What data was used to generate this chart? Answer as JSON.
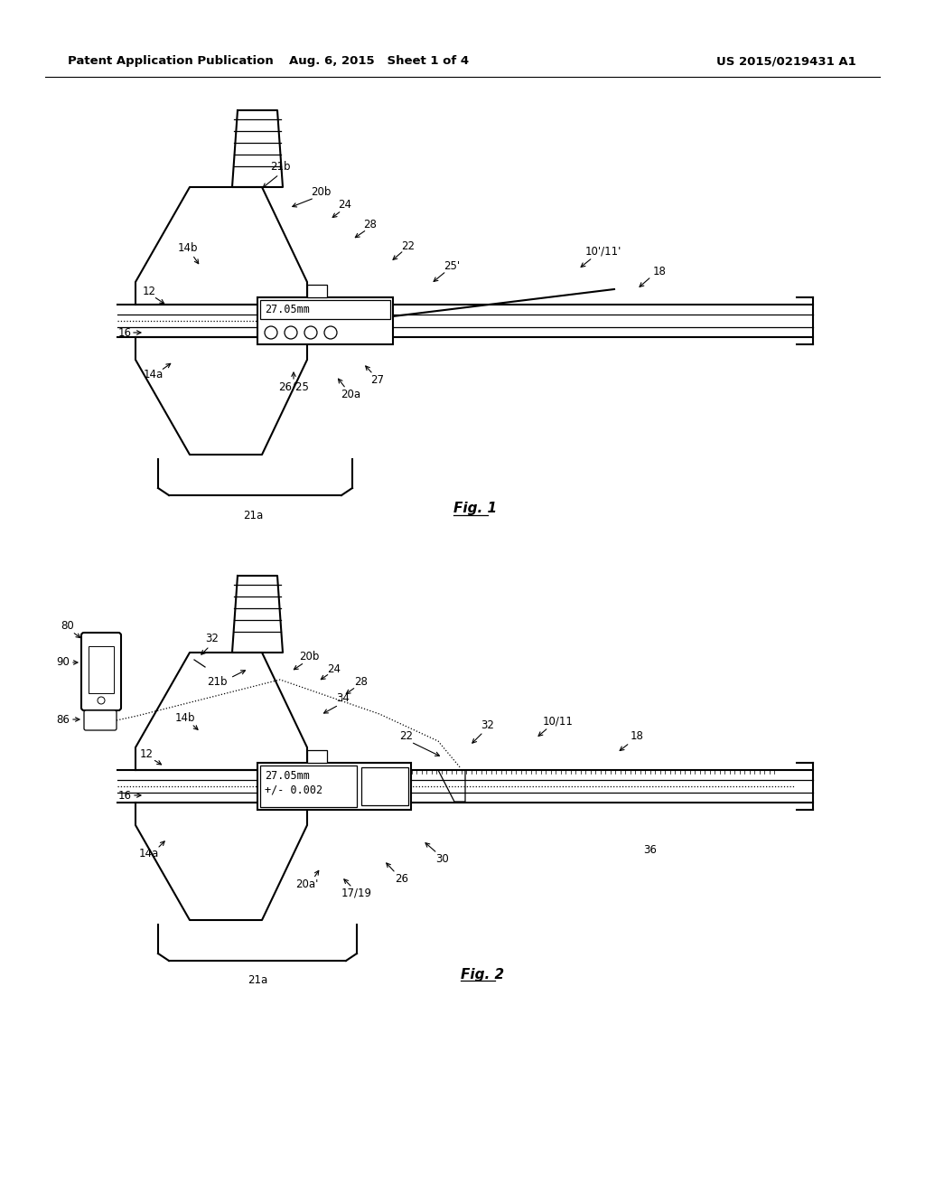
{
  "background_color": "#ffffff",
  "header_left": "Patent Application Publication",
  "header_mid": "Aug. 6, 2015   Sheet 1 of 4",
  "header_right": "US 2015/0219431 A1",
  "fig1_label": "Fig. 1",
  "fig2_label": "Fig. 2",
  "display1_text": "27.05mm",
  "display2_line1": "27.05mm",
  "display2_line2": "+/- 0.002"
}
